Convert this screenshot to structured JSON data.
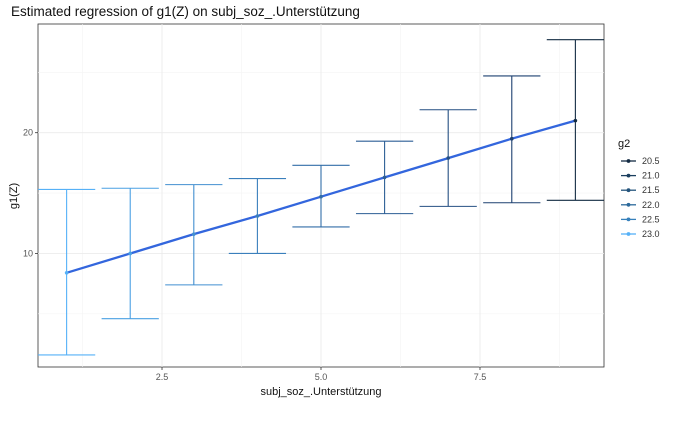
{
  "chart_data": {
    "type": "line",
    "title": "Estimated regression of g1(Z) on subj_soz_.Unterstützung",
    "xlabel": "subj_soz_.Unterstützung",
    "ylabel": "g1(Z)",
    "xlim": [
      0.55,
      9.45
    ],
    "ylim": [
      0.6,
      29.0
    ],
    "x_ticks": [
      2.5,
      5.0,
      7.5
    ],
    "x_tick_labels": [
      "2.5",
      "5.0",
      "7.5"
    ],
    "y_ticks": [
      10,
      20
    ],
    "y_tick_labels": [
      "10",
      "20"
    ],
    "grid": true,
    "legend": {
      "title": "g2",
      "position": "right",
      "entries": [
        "20.5",
        "21.0",
        "21.5",
        "22.0",
        "22.5",
        "23.0"
      ],
      "colors": [
        "#132b43",
        "#1b3f5f",
        "#24547c",
        "#2d6a9b",
        "#3680bb",
        "#56b1f7"
      ]
    },
    "regression_line_color": "#3366dd",
    "errorbar_colors": [
      "#56b1f7",
      "#4aa0e3",
      "#428fd0",
      "#3a7fbc",
      "#336ea8",
      "#2c5e95",
      "#244f82",
      "#1d4070",
      "#132b43"
    ],
    "points": [
      {
        "x": 1,
        "y": 8.4,
        "lower": 1.6,
        "upper": 15.3
      },
      {
        "x": 2,
        "y": 10.0,
        "lower": 4.6,
        "upper": 15.4
      },
      {
        "x": 3,
        "y": 11.6,
        "lower": 7.4,
        "upper": 15.7
      },
      {
        "x": 4,
        "y": 13.1,
        "lower": 10.0,
        "upper": 16.2
      },
      {
        "x": 5,
        "y": 14.7,
        "lower": 12.2,
        "upper": 17.3
      },
      {
        "x": 6,
        "y": 16.3,
        "lower": 13.3,
        "upper": 19.3
      },
      {
        "x": 7,
        "y": 17.9,
        "lower": 13.9,
        "upper": 21.9
      },
      {
        "x": 8,
        "y": 19.5,
        "lower": 14.2,
        "upper": 24.7
      },
      {
        "x": 9,
        "y": 21.0,
        "lower": 14.4,
        "upper": 27.7
      }
    ]
  }
}
